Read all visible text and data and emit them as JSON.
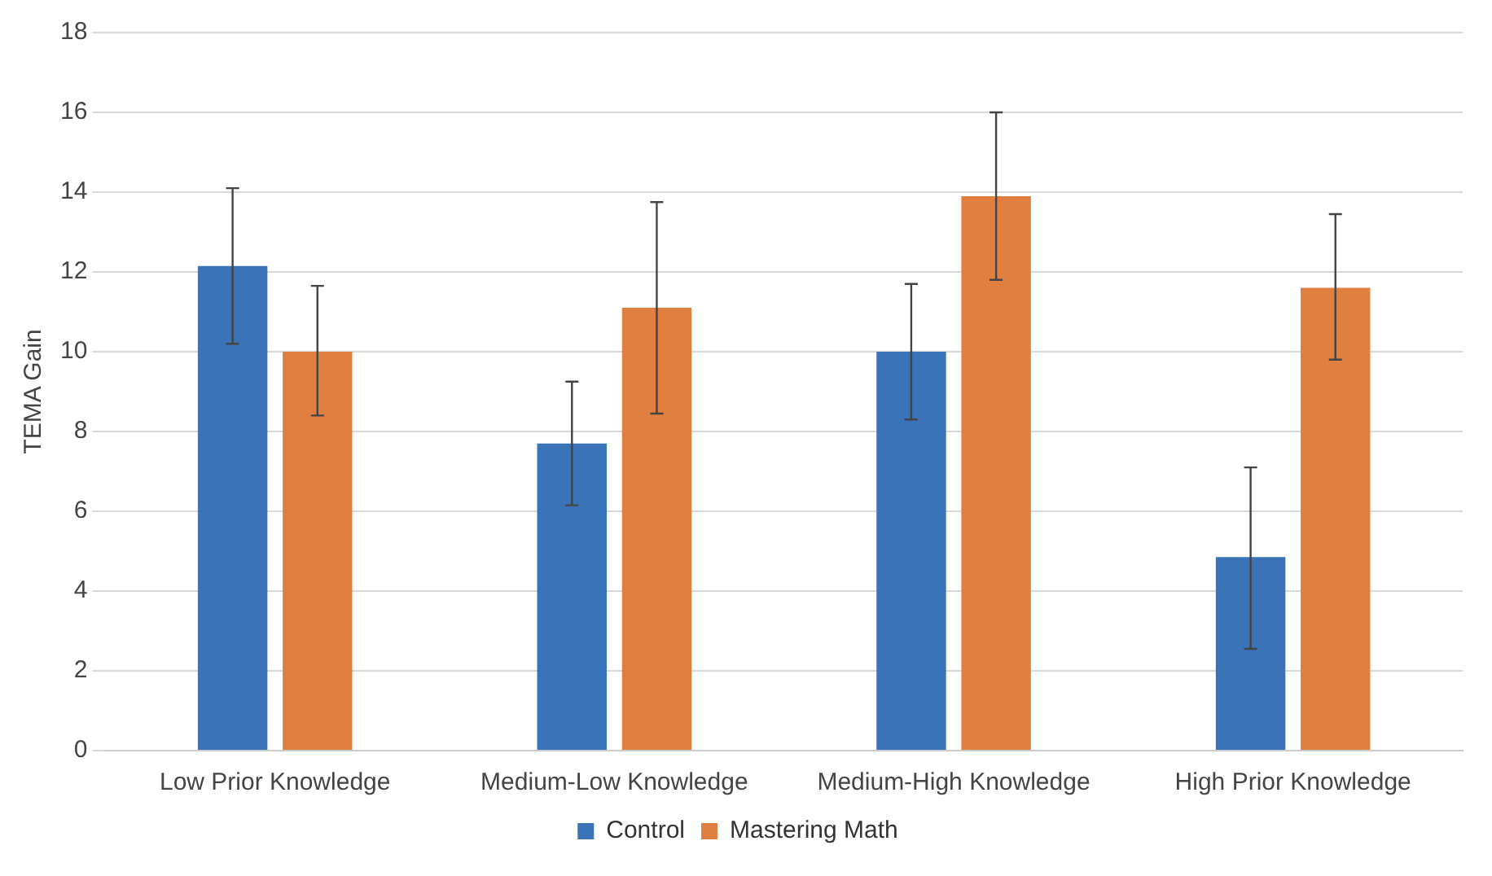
{
  "chart_data": {
    "type": "bar",
    "ylabel": "TEMA Gain",
    "categories": [
      "Low Prior Knowledge",
      "Medium-Low Knowledge",
      "Medium-High Knowledge",
      "High Prior Knowledge"
    ],
    "series": [
      {
        "name": "Control",
        "color": "#3a73b8",
        "values": [
          12.15,
          7.7,
          10.0,
          4.85
        ],
        "errors": [
          [
            10.2,
            14.1
          ],
          [
            6.15,
            9.25
          ],
          [
            8.3,
            11.7
          ],
          [
            2.55,
            7.1
          ]
        ]
      },
      {
        "name": "Mastering Math",
        "color": "#e07f3f",
        "values": [
          10.0,
          11.1,
          13.9,
          11.6
        ],
        "errors": [
          [
            8.4,
            11.65
          ],
          [
            8.45,
            13.75
          ],
          [
            11.8,
            16.0
          ],
          [
            9.8,
            13.45
          ]
        ]
      }
    ],
    "ylim": [
      0,
      18
    ],
    "yticks": [
      0,
      2,
      4,
      6,
      8,
      10,
      12,
      14,
      16,
      18
    ],
    "grid": "y",
    "legend": "bottom"
  }
}
